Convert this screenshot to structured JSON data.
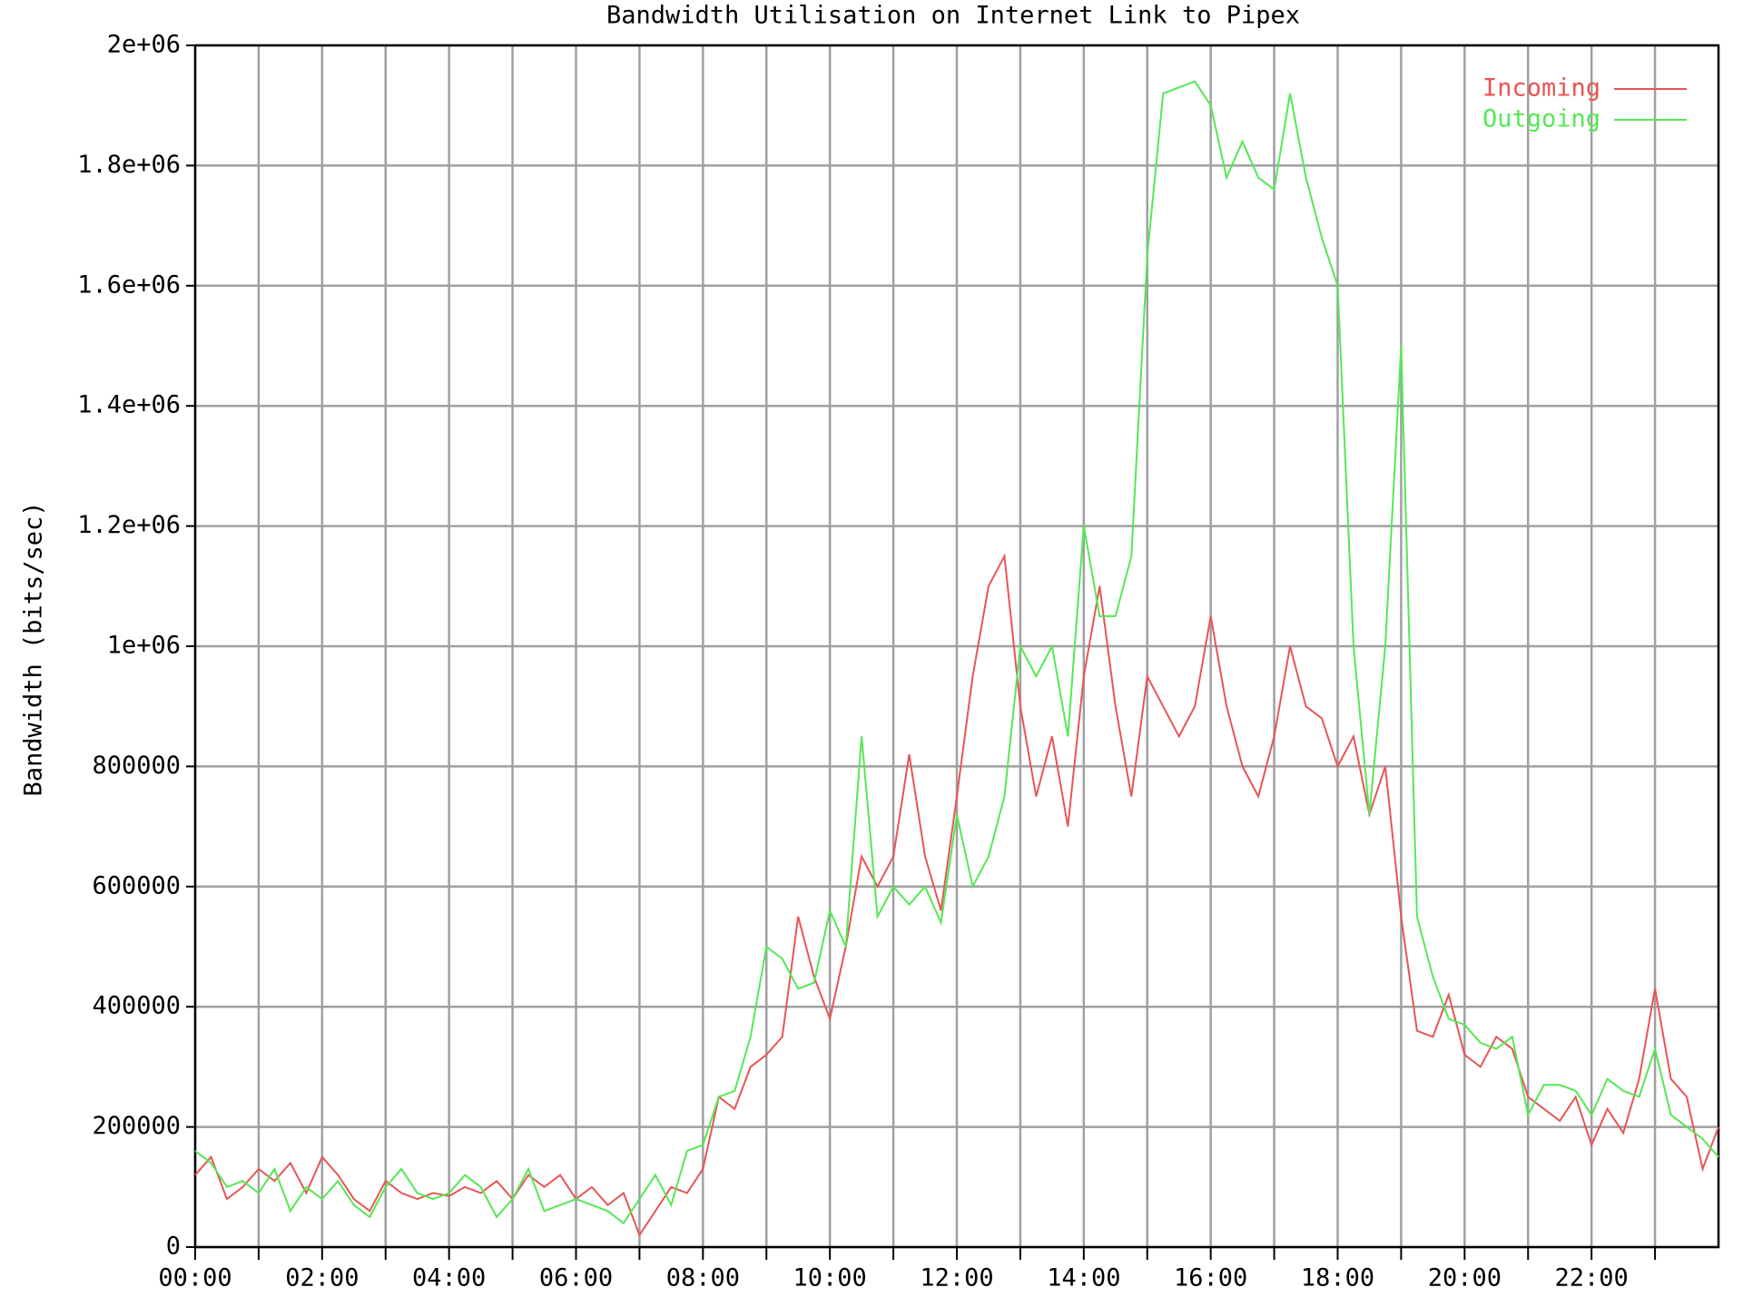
{
  "chart_data": {
    "type": "line",
    "title": "Bandwidth Utilisation on Internet Link to Pipex",
    "y_label": "Bandwidth (bits/sec)",
    "x": [
      0,
      0.25,
      0.5,
      0.75,
      1,
      1.25,
      1.5,
      1.75,
      2,
      2.25,
      2.5,
      2.75,
      3,
      3.25,
      3.5,
      3.75,
      4,
      4.25,
      4.5,
      4.75,
      5,
      5.25,
      5.5,
      5.75,
      6,
      6.25,
      6.5,
      6.75,
      7,
      7.25,
      7.5,
      7.75,
      8,
      8.25,
      8.5,
      8.75,
      9,
      9.25,
      9.5,
      9.75,
      10,
      10.25,
      10.5,
      10.75,
      11,
      11.25,
      11.5,
      11.75,
      12,
      12.25,
      12.5,
      12.75,
      13,
      13.25,
      13.5,
      13.75,
      14,
      14.25,
      14.5,
      14.75,
      15,
      15.25,
      15.5,
      15.75,
      16,
      16.25,
      16.5,
      16.75,
      17,
      17.25,
      17.5,
      17.75,
      18,
      18.25,
      18.5,
      18.75,
      19,
      19.25,
      19.5,
      19.75,
      20,
      20.25,
      20.5,
      20.75,
      21,
      21.25,
      21.5,
      21.75,
      22,
      22.25,
      22.5,
      22.75,
      23,
      23.25,
      23.5,
      23.75,
      24
    ],
    "series": [
      {
        "name": "Incoming",
        "color": "#e85555",
        "values": [
          120000,
          150000,
          80000,
          100000,
          130000,
          110000,
          140000,
          90000,
          150000,
          120000,
          80000,
          60000,
          110000,
          90000,
          80000,
          90000,
          85000,
          100000,
          90000,
          110000,
          80000,
          120000,
          100000,
          120000,
          80000,
          100000,
          70000,
          90000,
          20000,
          60000,
          100000,
          90000,
          130000,
          250000,
          230000,
          300000,
          320000,
          350000,
          550000,
          450000,
          380000,
          500000,
          650000,
          600000,
          650000,
          820000,
          650000,
          560000,
          750000,
          950000,
          1100000,
          1150000,
          900000,
          750000,
          850000,
          700000,
          950000,
          1100000,
          900000,
          750000,
          950000,
          900000,
          850000,
          900000,
          1050000,
          900000,
          800000,
          750000,
          850000,
          1000000,
          900000,
          880000,
          800000,
          850000,
          720000,
          800000,
          550000,
          360000,
          350000,
          420000,
          320000,
          300000,
          350000,
          330000,
          250000,
          230000,
          210000,
          250000,
          170000,
          230000,
          190000,
          280000,
          430000,
          280000,
          250000,
          130000,
          200000
        ]
      },
      {
        "name": "Outgoing",
        "color": "#55e855",
        "values": [
          160000,
          140000,
          100000,
          110000,
          90000,
          130000,
          60000,
          100000,
          80000,
          110000,
          70000,
          50000,
          100000,
          130000,
          90000,
          80000,
          90000,
          120000,
          100000,
          50000,
          80000,
          130000,
          60000,
          70000,
          80000,
          70000,
          60000,
          40000,
          80000,
          120000,
          70000,
          160000,
          170000,
          250000,
          260000,
          350000,
          500000,
          480000,
          430000,
          440000,
          560000,
          500000,
          850000,
          550000,
          600000,
          570000,
          600000,
          540000,
          720000,
          600000,
          650000,
          750000,
          1000000,
          950000,
          1000000,
          850000,
          1200000,
          1050000,
          1050000,
          1150000,
          1650000,
          1920000,
          1930000,
          1940000,
          1900000,
          1780000,
          1840000,
          1780000,
          1760000,
          1920000,
          1780000,
          1680000,
          1600000,
          1000000,
          720000,
          1000000,
          1500000,
          550000,
          450000,
          380000,
          370000,
          340000,
          330000,
          350000,
          220000,
          270000,
          270000,
          260000,
          220000,
          280000,
          260000,
          250000,
          330000,
          220000,
          200000,
          180000,
          150000
        ]
      }
    ],
    "xlim": [
      0,
      24
    ],
    "xticks": [
      {
        "value": 0,
        "label": "00:00"
      },
      {
        "value": 2,
        "label": "02:00"
      },
      {
        "value": 4,
        "label": "04:00"
      },
      {
        "value": 6,
        "label": "06:00"
      },
      {
        "value": 8,
        "label": "08:00"
      },
      {
        "value": 10,
        "label": "10:00"
      },
      {
        "value": 12,
        "label": "12:00"
      },
      {
        "value": 14,
        "label": "14:00"
      },
      {
        "value": 16,
        "label": "16:00"
      },
      {
        "value": 18,
        "label": "18:00"
      },
      {
        "value": 20,
        "label": "20:00"
      },
      {
        "value": 22,
        "label": "22:00"
      }
    ],
    "xminorticks": [
      1,
      3,
      5,
      7,
      9,
      11,
      13,
      15,
      17,
      19,
      21,
      23
    ],
    "ylim": [
      0,
      2000000
    ],
    "yticks": [
      0,
      200000,
      400000,
      600000,
      800000,
      {
        "value": 1000000,
        "label": "1e+06"
      },
      {
        "value": 1200000,
        "label": "1.2e+06"
      },
      {
        "value": 1400000,
        "label": "1.4e+06"
      },
      {
        "value": 1600000,
        "label": "1.6e+06"
      },
      {
        "value": 1800000,
        "label": "1.8e+06"
      },
      {
        "value": 2000000,
        "label": "2e+06"
      }
    ],
    "grid": true,
    "legend": "upper right"
  }
}
